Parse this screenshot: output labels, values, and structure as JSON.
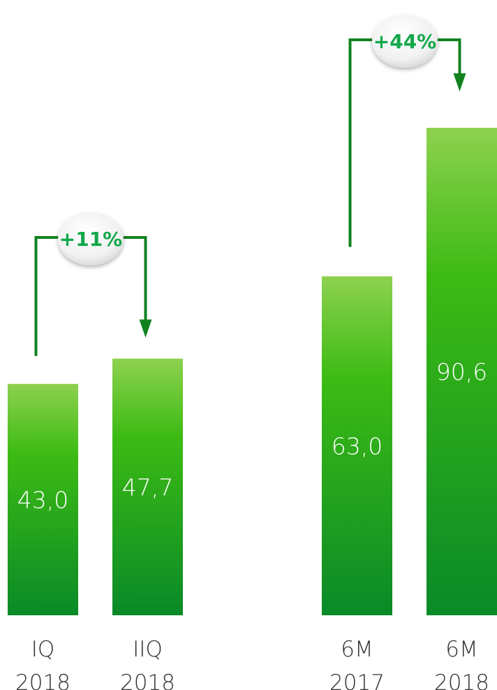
{
  "chart_data": {
    "type": "bar",
    "categories": [
      [
        "IQ",
        "2018"
      ],
      [
        "IIQ",
        "2018"
      ],
      [
        "6M",
        "2017"
      ],
      [
        "6M",
        "2018"
      ]
    ],
    "values": [
      43.0,
      47.7,
      63.0,
      90.6
    ],
    "value_labels": [
      "43,0",
      "47,7",
      "63,0",
      "90,6"
    ],
    "comparisons": [
      {
        "from": 0,
        "to": 1,
        "label": "+11%"
      },
      {
        "from": 2,
        "to": 3,
        "label": "+44%"
      }
    ],
    "title": "",
    "xlabel": "",
    "ylabel": "",
    "grid": false,
    "legend": "none",
    "colors": {
      "bar_top": "#8ed14f",
      "bar_mid": "#3dbb14",
      "bar_bottom": "#0a8a28",
      "arrow": "#12821f",
      "badge_text": "#12a84a",
      "tick_text": "#333333",
      "value_text": "#ffffff"
    }
  }
}
